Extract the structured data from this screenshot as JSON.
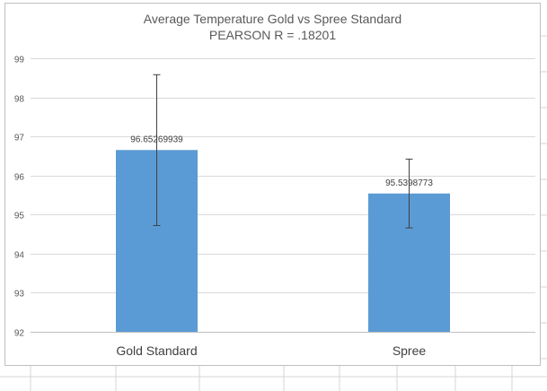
{
  "chart_data": {
    "type": "bar",
    "title": "Average Temperature Gold vs Spree Standard",
    "subtitle": "PEARSON R = .18201",
    "categories": [
      "Gold Standard",
      "Spree"
    ],
    "values": [
      96.65269939,
      95.5398773
    ],
    "value_labels": [
      "96.65269939",
      "95.5398773"
    ],
    "error_high": [
      98.58,
      96.42
    ],
    "error_low": [
      94.72,
      94.66
    ],
    "ylim": [
      92,
      99
    ],
    "yticks": [
      92,
      93,
      94,
      95,
      96,
      97,
      98,
      99
    ],
    "xlabel": "",
    "ylabel": "",
    "grid": true,
    "bar_color": "#5b9bd5",
    "gridline_color": "#d9d9d9",
    "errorbar_color": "#404040"
  }
}
